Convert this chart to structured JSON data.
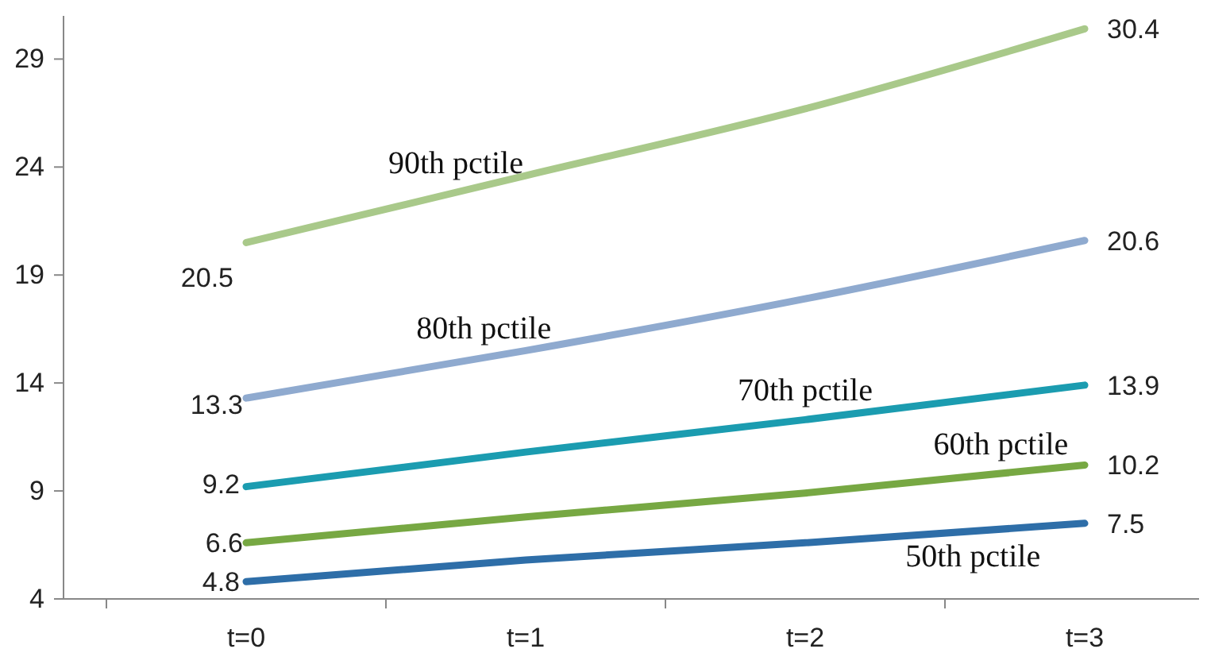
{
  "chart_data": {
    "type": "line",
    "categories": [
      "t=0",
      "t=1",
      "t=2",
      "t=3"
    ],
    "ylim": [
      4,
      31
    ],
    "yticks": [
      4,
      9,
      14,
      19,
      24,
      29
    ],
    "marker": "none",
    "line_style": "solid",
    "series": [
      {
        "name": "90th pctile",
        "color": "#a9c98a",
        "values": [
          20.5,
          23.6,
          26.7,
          30.4
        ],
        "value_labels": [
          "20.5",
          null,
          null,
          "30.4"
        ]
      },
      {
        "name": "80th pctile",
        "color": "#8faacf",
        "values": [
          13.3,
          15.5,
          17.9,
          20.6
        ],
        "value_labels": [
          "13.3",
          null,
          null,
          "20.6"
        ]
      },
      {
        "name": "70th pctile",
        "color": "#1b9cb0",
        "values": [
          9.2,
          10.8,
          12.3,
          13.9
        ],
        "value_labels": [
          "9.2",
          null,
          null,
          "13.9"
        ]
      },
      {
        "name": "60th pctile",
        "color": "#77a843",
        "values": [
          6.6,
          7.8,
          8.9,
          10.2
        ],
        "value_labels": [
          "6.6",
          null,
          null,
          "10.2"
        ]
      },
      {
        "name": "50th pctile",
        "color": "#2e6ea8",
        "values": [
          4.8,
          5.8,
          6.6,
          7.5
        ],
        "value_labels": [
          "4.8",
          null,
          null,
          "7.5"
        ]
      }
    ]
  }
}
